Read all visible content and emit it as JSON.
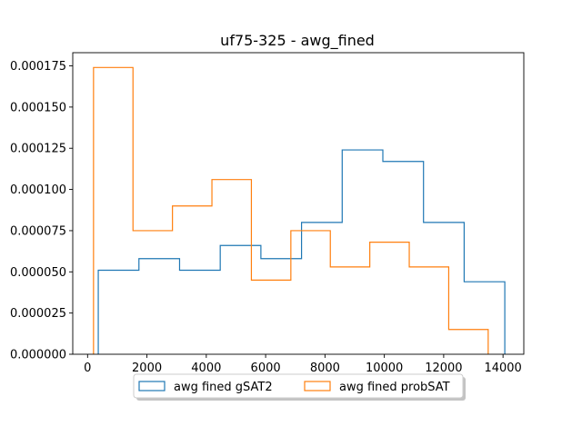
{
  "chart_data": {
    "type": "histogram-step",
    "title": "uf75-325 - awg_fined",
    "xlabel": "",
    "ylabel": "",
    "xlim": [
      -500,
      14700
    ],
    "ylim": [
      0,
      0.000183
    ],
    "xticks": [
      0,
      2000,
      4000,
      6000,
      8000,
      10000,
      12000,
      14000
    ],
    "xtick_labels": [
      "0",
      "2000",
      "4000",
      "6000",
      "8000",
      "10000",
      "12000",
      "14000"
    ],
    "yticks": [
      0,
      2.5e-05,
      5e-05,
      7.5e-05,
      0.0001,
      0.000125,
      0.00015,
      0.000175
    ],
    "ytick_labels": [
      "0.000000",
      "0.000025",
      "0.000050",
      "0.000075",
      "0.000100",
      "0.000125",
      "0.000150",
      "0.000175"
    ],
    "grid": false,
    "legend_position": "lower center, below axes",
    "series": [
      {
        "name": "awg fined gSAT2",
        "color": "#1f77b4",
        "bin_edges": [
          360,
          1730,
          3100,
          4470,
          5840,
          7210,
          8580,
          9950,
          11320,
          12690,
          14060
        ],
        "values": [
          5.1e-05,
          5.8e-05,
          5.1e-05,
          6.6e-05,
          5.8e-05,
          8e-05,
          0.000124,
          0.000117,
          8e-05,
          4.4e-05
        ]
      },
      {
        "name": "awg fined probSAT",
        "color": "#ff7f0e",
        "bin_edges": [
          200,
          1530,
          2860,
          4190,
          5520,
          6850,
          8180,
          9510,
          10840,
          12170,
          13500
        ],
        "values": [
          0.000174,
          7.5e-05,
          9e-05,
          0.000106,
          4.5e-05,
          7.5e-05,
          5.3e-05,
          6.8e-05,
          5.3e-05,
          1.5e-05
        ]
      }
    ]
  }
}
